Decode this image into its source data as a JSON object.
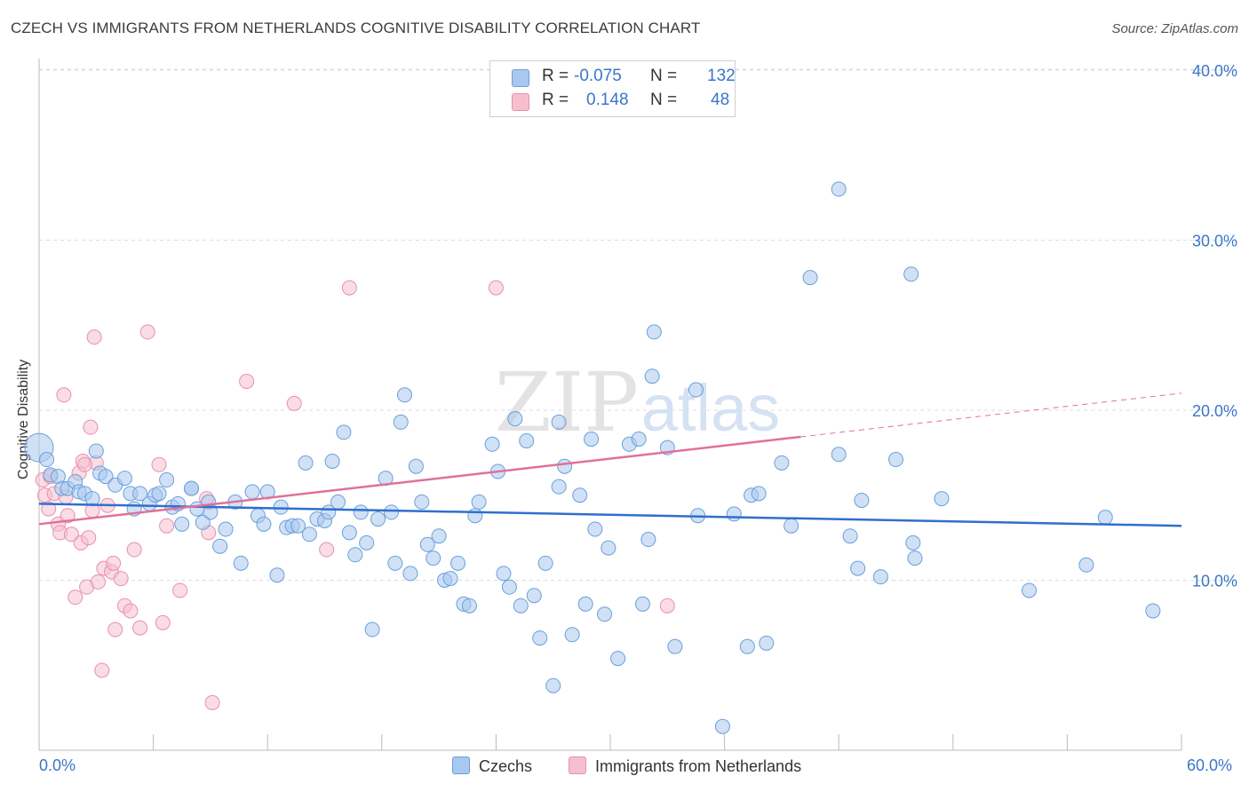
{
  "header": {
    "title": "CZECH VS IMMIGRANTS FROM NETHERLANDS COGNITIVE DISABILITY CORRELATION CHART",
    "source": "Source: ZipAtlas.com"
  },
  "legend_top": {
    "rows": [
      {
        "r_label": "R =",
        "r_value": "-0.075",
        "n_label": "N =",
        "n_value": "132"
      },
      {
        "r_label": "R =",
        "r_value": "0.148",
        "n_label": "N =",
        "n_value": "48"
      }
    ]
  },
  "legend_bottom": {
    "items": [
      {
        "label": "Czechs"
      },
      {
        "label": "Immigrants from Netherlands"
      }
    ]
  },
  "watermark": {
    "zip": "ZIP",
    "atlas": "atlas"
  },
  "colors": {
    "blue_fill": "#a9c8ef",
    "blue_stroke": "#6a9fdc",
    "blue_line": "#2f6fcc",
    "pink_fill": "#f6bfd0",
    "pink_stroke": "#e890ad",
    "pink_line": "#e0709a",
    "axis_text": "#3a76c8",
    "grid": "#dddddd"
  },
  "chart_data": {
    "type": "scatter",
    "title": "CZECH VS IMMIGRANTS FROM NETHERLANDS COGNITIVE DISABILITY CORRELATION CHART",
    "xlabel": "",
    "ylabel": "Cognitive Disability",
    "xlim": [
      0,
      60
    ],
    "ylim": [
      0,
      41
    ],
    "x_tick_labels": [
      "0.0%",
      "60.0%"
    ],
    "y_ticks": [
      10,
      20,
      30,
      40
    ],
    "y_tick_labels": [
      "10.0%",
      "20.0%",
      "30.0%",
      "40.0%"
    ],
    "grid": "horizontal dashed",
    "legend_position": "bottom",
    "series": [
      {
        "name": "Czechs",
        "r": -0.075,
        "n": 132,
        "trend": {
          "x": [
            0,
            60
          ],
          "y": [
            14.5,
            13.2
          ],
          "dashed_after": null
        },
        "points": [
          [
            0.0,
            17.8
          ],
          [
            0.4,
            17.1
          ],
          [
            0.6,
            16.2
          ],
          [
            1.0,
            16.1
          ],
          [
            1.2,
            15.4
          ],
          [
            1.5,
            15.4
          ],
          [
            1.9,
            15.8
          ],
          [
            2.1,
            15.2
          ],
          [
            2.4,
            15.1
          ],
          [
            2.8,
            14.8
          ],
          [
            3.0,
            17.6
          ],
          [
            3.2,
            16.3
          ],
          [
            3.5,
            16.1
          ],
          [
            4.0,
            15.6
          ],
          [
            4.5,
            16.0
          ],
          [
            4.8,
            15.1
          ],
          [
            5.0,
            14.2
          ],
          [
            5.3,
            15.1
          ],
          [
            5.8,
            14.5
          ],
          [
            6.1,
            15.0
          ],
          [
            6.3,
            15.1
          ],
          [
            6.7,
            15.9
          ],
          [
            7.0,
            14.3
          ],
          [
            7.3,
            14.5
          ],
          [
            7.5,
            13.3
          ],
          [
            8.0,
            15.4
          ],
          [
            8.3,
            14.2
          ],
          [
            8.6,
            13.4
          ],
          [
            8.9,
            14.6
          ],
          [
            9.5,
            12.0
          ],
          [
            9.8,
            13.0
          ],
          [
            10.3,
            14.6
          ],
          [
            10.6,
            11.0
          ],
          [
            11.2,
            15.2
          ],
          [
            11.5,
            13.8
          ],
          [
            11.8,
            13.3
          ],
          [
            12.0,
            15.2
          ],
          [
            12.5,
            10.3
          ],
          [
            12.7,
            14.3
          ],
          [
            13.0,
            13.1
          ],
          [
            13.3,
            13.2
          ],
          [
            13.6,
            13.2
          ],
          [
            14.0,
            16.9
          ],
          [
            14.2,
            12.7
          ],
          [
            14.6,
            13.6
          ],
          [
            15.0,
            13.5
          ],
          [
            15.2,
            14.0
          ],
          [
            15.4,
            17.0
          ],
          [
            15.7,
            14.6
          ],
          [
            16.0,
            18.7
          ],
          [
            16.3,
            12.8
          ],
          [
            16.6,
            11.5
          ],
          [
            16.9,
            14.0
          ],
          [
            17.2,
            12.2
          ],
          [
            17.5,
            7.1
          ],
          [
            17.8,
            13.6
          ],
          [
            18.2,
            16.0
          ],
          [
            18.5,
            14.0
          ],
          [
            18.7,
            11.0
          ],
          [
            19.0,
            19.3
          ],
          [
            19.2,
            20.9
          ],
          [
            19.5,
            10.4
          ],
          [
            19.8,
            16.7
          ],
          [
            20.1,
            14.6
          ],
          [
            20.4,
            12.1
          ],
          [
            20.7,
            11.3
          ],
          [
            21.0,
            12.6
          ],
          [
            21.3,
            10.0
          ],
          [
            21.6,
            10.1
          ],
          [
            22.0,
            11.0
          ],
          [
            22.3,
            8.6
          ],
          [
            22.6,
            8.5
          ],
          [
            22.9,
            13.8
          ],
          [
            23.1,
            14.6
          ],
          [
            23.8,
            18.0
          ],
          [
            24.1,
            16.4
          ],
          [
            24.4,
            10.4
          ],
          [
            24.7,
            9.6
          ],
          [
            25.0,
            19.5
          ],
          [
            25.3,
            8.5
          ],
          [
            25.6,
            18.2
          ],
          [
            26.0,
            9.1
          ],
          [
            26.3,
            6.6
          ],
          [
            26.6,
            11.0
          ],
          [
            27.0,
            3.8
          ],
          [
            27.3,
            19.3
          ],
          [
            27.3,
            15.5
          ],
          [
            27.6,
            16.7
          ],
          [
            28.0,
            6.8
          ],
          [
            28.4,
            15.0
          ],
          [
            28.7,
            8.6
          ],
          [
            29.0,
            18.3
          ],
          [
            29.2,
            13.0
          ],
          [
            29.7,
            8.0
          ],
          [
            29.9,
            11.9
          ],
          [
            30.4,
            5.4
          ],
          [
            31.0,
            18.0
          ],
          [
            31.5,
            18.3
          ],
          [
            31.7,
            8.6
          ],
          [
            32.0,
            12.4
          ],
          [
            32.2,
            22.0
          ],
          [
            32.3,
            24.6
          ],
          [
            33.0,
            17.8
          ],
          [
            33.4,
            6.1
          ],
          [
            34.5,
            21.2
          ],
          [
            34.6,
            13.8
          ],
          [
            35.9,
            1.4
          ],
          [
            36.5,
            13.9
          ],
          [
            37.2,
            6.1
          ],
          [
            37.4,
            15.0
          ],
          [
            37.8,
            15.1
          ],
          [
            38.2,
            6.3
          ],
          [
            39.0,
            16.9
          ],
          [
            39.5,
            13.2
          ],
          [
            40.5,
            27.8
          ],
          [
            42.0,
            33.0
          ],
          [
            42.0,
            17.4
          ],
          [
            42.6,
            12.6
          ],
          [
            43.0,
            10.7
          ],
          [
            43.2,
            14.7
          ],
          [
            44.2,
            10.2
          ],
          [
            45.0,
            17.1
          ],
          [
            45.8,
            28.0
          ],
          [
            45.9,
            12.2
          ],
          [
            46.0,
            11.3
          ],
          [
            47.4,
            14.8
          ],
          [
            52.0,
            9.4
          ],
          [
            55.0,
            10.9
          ],
          [
            56.0,
            13.7
          ],
          [
            58.5,
            8.2
          ],
          [
            8.0,
            15.4
          ],
          [
            9.0,
            14.0
          ]
        ]
      },
      {
        "name": "Immigrants from Netherlands",
        "r": 0.148,
        "n": 48,
        "trend": {
          "x": [
            0,
            60
          ],
          "y": [
            13.3,
            21.0
          ],
          "solid_until_x": 40
        },
        "points": [
          [
            0.2,
            15.9
          ],
          [
            0.3,
            15.0
          ],
          [
            0.5,
            14.2
          ],
          [
            0.8,
            15.1
          ],
          [
            1.0,
            13.3
          ],
          [
            1.1,
            12.8
          ],
          [
            1.3,
            20.9
          ],
          [
            1.5,
            13.8
          ],
          [
            1.7,
            12.7
          ],
          [
            1.9,
            9.0
          ],
          [
            2.1,
            16.3
          ],
          [
            2.2,
            12.2
          ],
          [
            2.3,
            17.0
          ],
          [
            2.5,
            9.6
          ],
          [
            2.6,
            12.5
          ],
          [
            2.7,
            19.0
          ],
          [
            2.8,
            14.1
          ],
          [
            2.9,
            24.3
          ],
          [
            3.0,
            16.9
          ],
          [
            3.1,
            9.9
          ],
          [
            3.3,
            4.7
          ],
          [
            3.4,
            10.7
          ],
          [
            3.6,
            14.4
          ],
          [
            3.8,
            10.5
          ],
          [
            3.9,
            11.0
          ],
          [
            4.0,
            7.1
          ],
          [
            4.3,
            10.1
          ],
          [
            4.5,
            8.5
          ],
          [
            4.8,
            8.2
          ],
          [
            5.0,
            11.8
          ],
          [
            5.3,
            7.2
          ],
          [
            5.7,
            24.6
          ],
          [
            6.3,
            16.8
          ],
          [
            6.5,
            7.5
          ],
          [
            6.7,
            13.2
          ],
          [
            7.4,
            9.4
          ],
          [
            8.8,
            14.8
          ],
          [
            8.9,
            12.8
          ],
          [
            9.1,
            2.8
          ],
          [
            10.9,
            21.7
          ],
          [
            13.4,
            20.4
          ],
          [
            15.1,
            11.8
          ],
          [
            16.3,
            27.2
          ],
          [
            24.0,
            27.2
          ],
          [
            33.0,
            8.5
          ],
          [
            0.6,
            16.1
          ],
          [
            1.4,
            14.9
          ],
          [
            2.4,
            16.8
          ]
        ]
      }
    ]
  }
}
